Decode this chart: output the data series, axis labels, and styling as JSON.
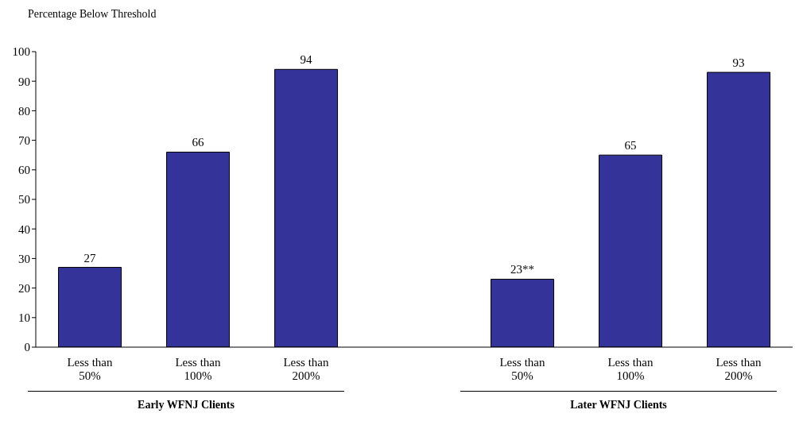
{
  "chart_data": {
    "type": "bar",
    "ylabel": "Percentage Below Threshold",
    "categories": [
      "Less than 50%",
      "Less than 100%",
      "Less than 200%",
      null,
      "Less than 50%",
      "Less than 100%",
      "Less than 200%"
    ],
    "values": [
      27,
      66,
      94,
      null,
      23,
      65,
      93
    ],
    "value_labels": [
      "27",
      "66",
      "94",
      null,
      "23**",
      "65",
      "93"
    ],
    "color": "#333399",
    "ylim": [
      0,
      100
    ],
    "yticks": [
      0,
      10,
      20,
      30,
      40,
      50,
      60,
      70,
      80,
      90,
      100
    ],
    "annotations": [
      "Early WFNJ Clients",
      "Later WFNJ Clients"
    ]
  }
}
